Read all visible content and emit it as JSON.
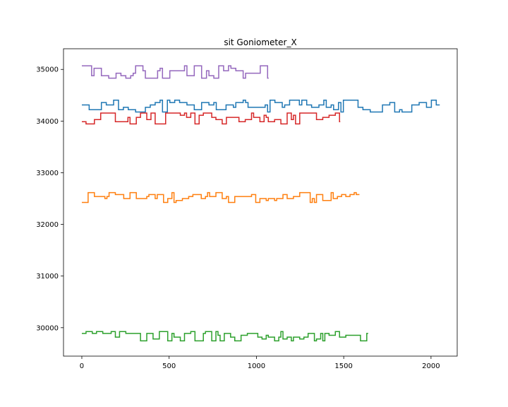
{
  "chart_data": {
    "type": "line",
    "title": "sit Goniometer_X",
    "xlabel": "",
    "ylabel": "",
    "xlim": [
      -105,
      2150
    ],
    "ylim": [
      29450,
      35400
    ],
    "xticks": [
      0,
      500,
      1000,
      1500,
      2000
    ],
    "xtick_labels": [
      "0",
      "500",
      "1000",
      "1500",
      "2000"
    ],
    "yticks": [
      30000,
      31000,
      32000,
      33000,
      34000,
      35000
    ],
    "ytick_labels": [
      "30000",
      "31000",
      "32000",
      "33000",
      "34000",
      "35000"
    ],
    "grid": false,
    "legend": "none",
    "series": [
      {
        "color": "#1f77b4",
        "length": 2050,
        "base": 34290,
        "amplitude": 115,
        "step": 14,
        "seed": 11
      },
      {
        "color": "#ff7f0e",
        "length": 1590,
        "base": 32520,
        "amplitude": 95,
        "step": 12,
        "seed": 23
      },
      {
        "color": "#2ca02c",
        "length": 1640,
        "base": 29835,
        "amplitude": 90,
        "step": 12,
        "seed": 37
      },
      {
        "color": "#d62728",
        "length": 1480,
        "base": 34050,
        "amplitude": 105,
        "step": 12,
        "seed": 51
      },
      {
        "color": "#9467bd",
        "length": 1070,
        "base": 34950,
        "amplitude": 120,
        "step": 14,
        "seed": 67
      }
    ]
  }
}
